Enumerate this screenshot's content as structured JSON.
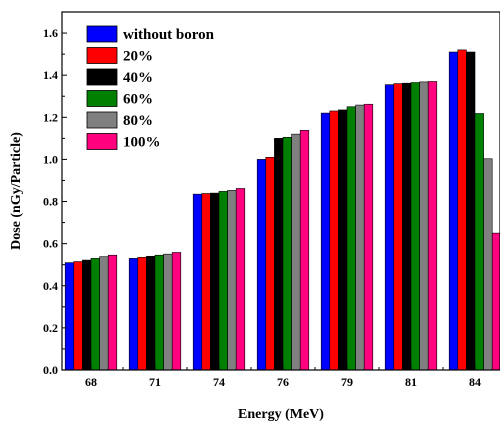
{
  "chart_data": {
    "type": "bar",
    "title": "",
    "xlabel": "Energy (MeV)",
    "ylabel": "Dose (nGy/Particle)",
    "ylim": [
      0.0,
      1.7
    ],
    "y_ticks": [
      "0.0",
      "0.2",
      "0.4",
      "0.6",
      "0.8",
      "1.0",
      "1.2",
      "1.4",
      "1.6"
    ],
    "categories": [
      "68",
      "71",
      "74",
      "76",
      "79",
      "81",
      "84"
    ],
    "grid": false,
    "legend_position": "top-left",
    "series": [
      {
        "name": "without boron",
        "color": "#0000ff",
        "values": [
          0.51,
          0.53,
          0.835,
          1.0,
          1.22,
          1.355,
          1.51
        ]
      },
      {
        "name": "20%",
        "color": "#ff0000",
        "values": [
          0.515,
          0.535,
          0.838,
          1.01,
          1.23,
          1.36,
          1.52
        ]
      },
      {
        "name": "40%",
        "color": "#000000",
        "values": [
          0.522,
          0.54,
          0.84,
          1.1,
          1.235,
          1.362,
          1.51
        ]
      },
      {
        "name": "60%",
        "color": "#008000",
        "values": [
          0.53,
          0.545,
          0.848,
          1.105,
          1.25,
          1.365,
          1.218
        ]
      },
      {
        "name": "80%",
        "color": "#808080",
        "values": [
          0.538,
          0.55,
          0.853,
          1.12,
          1.258,
          1.368,
          1.003
        ]
      },
      {
        "name": "100%",
        "color": "#ff007f",
        "values": [
          0.545,
          0.558,
          0.862,
          1.138,
          1.262,
          1.37,
          0.65
        ]
      }
    ]
  }
}
